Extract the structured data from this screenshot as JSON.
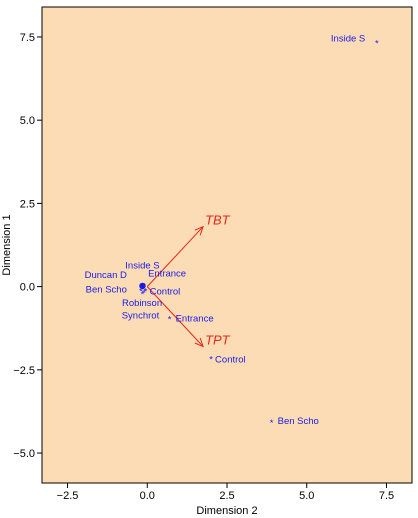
{
  "chart_data": {
    "type": "scatter",
    "title": "",
    "xlabel": "Dimension 2",
    "ylabel": "Dimension 1",
    "xlim": [
      -3.3,
      8.3
    ],
    "ylim": [
      -5.9,
      8.4
    ],
    "xticks": [
      -2.5,
      0.0,
      2.5,
      5.0,
      7.5
    ],
    "yticks": [
      -5.0,
      -2.5,
      0.0,
      2.5,
      5.0,
      7.5
    ],
    "xtick_labels": [
      "−2.5",
      "0.0",
      "2.5",
      "5.0",
      "7.5"
    ],
    "ytick_labels": [
      "−5.0",
      "−2.5",
      "0.0",
      "2.5",
      "5.0",
      "7.5"
    ],
    "grid": false,
    "colors": {
      "plot_bg": "#fbdcb5",
      "points": "#1a1ae6",
      "vectors": "#e8261e",
      "axis": "#000000"
    },
    "points": [
      {
        "x": 7.2,
        "y": 7.4,
        "label": "Inside S"
      },
      {
        "x": 3.9,
        "y": -4.0,
        "label": "Ben Scho"
      },
      {
        "x": 2.0,
        "y": -2.1,
        "label": "Control"
      },
      {
        "x": 0.7,
        "y": -0.9,
        "label": "Entrance"
      },
      {
        "x": -0.15,
        "y": 0.1,
        "label": "Inside S"
      },
      {
        "x": -0.2,
        "y": 0.05,
        "label": "Duncan D"
      },
      {
        "x": -0.1,
        "y": 0.1,
        "label": "Entrance"
      },
      {
        "x": -0.2,
        "y": -0.05,
        "label": "Ben Scho"
      },
      {
        "x": -0.05,
        "y": -0.05,
        "label": "Control"
      },
      {
        "x": -0.1,
        "y": -0.1,
        "label": "Robinson"
      },
      {
        "x": -0.15,
        "y": -0.15,
        "label": "Synchrot"
      }
    ],
    "vectors": [
      {
        "x": 1.75,
        "y": 1.8,
        "label": "TBT"
      },
      {
        "x": 1.75,
        "y": -1.8,
        "label": "TPT"
      }
    ]
  }
}
